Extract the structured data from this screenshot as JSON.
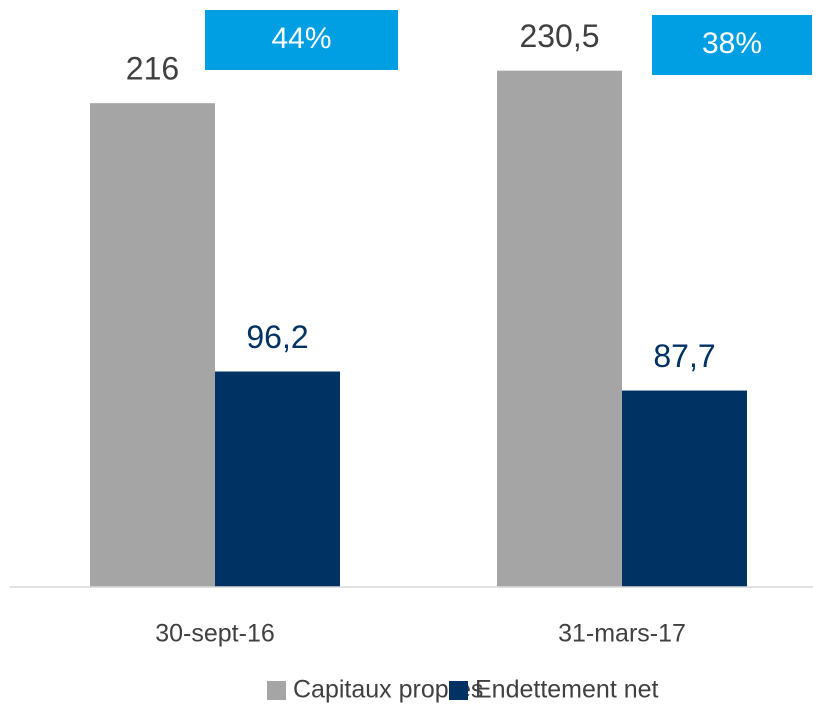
{
  "chart_data": {
    "type": "bar",
    "categories": [
      "30-sept-16",
      "31-mars-17"
    ],
    "series": [
      {
        "name": "Capitaux propres",
        "color": "#a5a5a5",
        "values": [
          216,
          230.5
        ],
        "value_labels": [
          "216",
          "230,5"
        ],
        "label_color": "#404040"
      },
      {
        "name": "Endettement net",
        "color": "#003263",
        "values": [
          96.2,
          87.7
        ],
        "value_labels": [
          "96,2",
          "87,7"
        ],
        "label_color": "#003263"
      }
    ],
    "annotations": [
      "44%",
      "38%"
    ],
    "annotation_color": "#009fe3",
    "ylim": [
      0,
      250
    ],
    "legend": "bottom"
  }
}
